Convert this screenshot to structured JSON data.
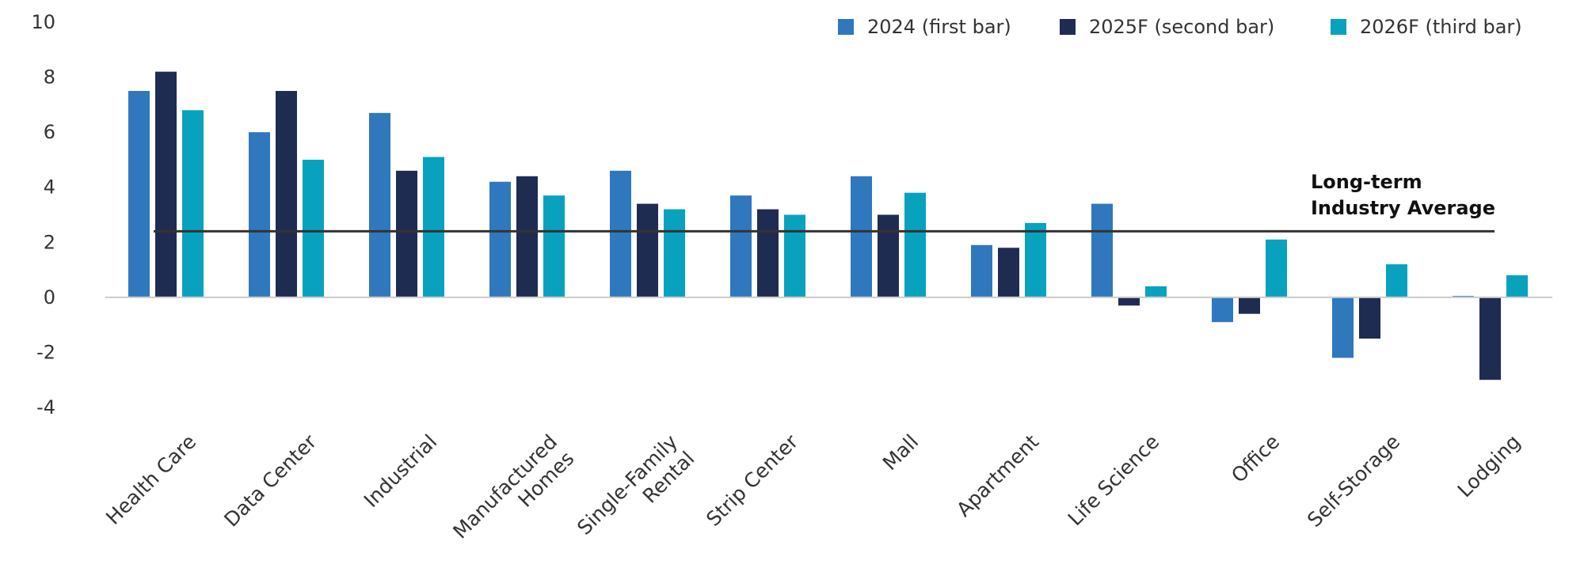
{
  "colors": {
    "series_2024": "#2f78be",
    "series_2025F": "#1f2c52",
    "series_2026F": "#08a2bf",
    "average_line": "#333333",
    "zero_line": "#cccccc",
    "text": "#333333"
  },
  "chart_data": {
    "type": "bar",
    "title": "",
    "xlabel": "",
    "ylabel": "",
    "ylim": [
      -4,
      10
    ],
    "yticks": [
      10,
      8,
      6,
      4,
      2,
      0,
      -2,
      -4
    ],
    "ytick_labels": [
      "10",
      "8",
      "6",
      "4",
      "2",
      "0",
      "-2",
      "-4"
    ],
    "grid": false,
    "legend_position": "top-right",
    "categories": [
      [
        "Health Care"
      ],
      [
        "Data Center"
      ],
      [
        "Industrial"
      ],
      [
        "Manufactured",
        "Homes"
      ],
      [
        "Single-Family",
        "Rental"
      ],
      [
        "Strip Center"
      ],
      [
        "Mall"
      ],
      [
        "Apartment"
      ],
      [
        "Life Science"
      ],
      [
        "Office"
      ],
      [
        "Self-Storage"
      ],
      [
        "Lodging"
      ]
    ],
    "series": [
      {
        "name": "2024 (first bar)",
        "color": "#2f78be",
        "values": [
          7.5,
          6.0,
          6.7,
          4.2,
          4.6,
          3.7,
          4.4,
          1.9,
          3.4,
          -0.9,
          -2.2,
          0.05
        ]
      },
      {
        "name": "2025F (second bar)",
        "color": "#1f2c52",
        "values": [
          8.2,
          7.5,
          4.6,
          4.4,
          3.4,
          3.2,
          3.0,
          1.8,
          -0.3,
          -0.6,
          -1.5,
          -3.0
        ]
      },
      {
        "name": "2026F (third bar)",
        "color": "#08a2bf",
        "values": [
          6.8,
          5.0,
          5.1,
          3.7,
          3.2,
          3.0,
          3.8,
          2.7,
          0.4,
          2.1,
          1.2,
          0.8
        ]
      }
    ],
    "reference_line": {
      "value": 2.4,
      "label_lines": [
        "Long-term",
        "Industry Average"
      ]
    }
  }
}
